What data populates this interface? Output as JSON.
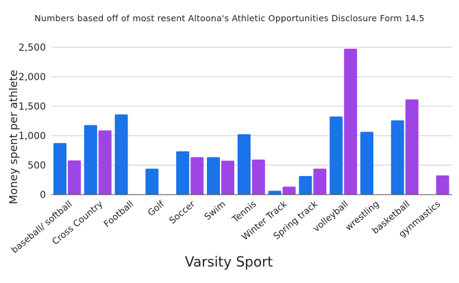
{
  "chart_data": {
    "type": "bar",
    "title": "Numbers based off of most resent Altoona's Athletic Opportunities Disclosure Form 14.5",
    "xlabel": "Varsity Sport",
    "ylabel": "Money spent per athlete",
    "ylim": [
      0,
      2500
    ],
    "yticks": [
      0,
      500,
      1000,
      1500,
      2000,
      2500
    ],
    "ytick_labels": [
      "0",
      "500",
      "1,000",
      "1,500",
      "2,000",
      "2,500"
    ],
    "grid": true,
    "legend": "none",
    "categories": [
      "baseball/ softball",
      "Cross Country",
      "Football",
      "Golf",
      "Soccer",
      "Swim",
      "Tennis",
      "Winter Track",
      "Spring track",
      "volleyball",
      "wrestling",
      "basketball",
      "gynmastics"
    ],
    "series": [
      {
        "color": "#1a73e8",
        "values": [
          875,
          1180,
          1360,
          440,
          735,
          635,
          1025,
          65,
          315,
          1325,
          1065,
          1260,
          null
        ]
      },
      {
        "color": "#9e45e6",
        "values": [
          580,
          1090,
          null,
          null,
          635,
          575,
          595,
          135,
          440,
          2475,
          null,
          1615,
          325
        ]
      }
    ]
  }
}
